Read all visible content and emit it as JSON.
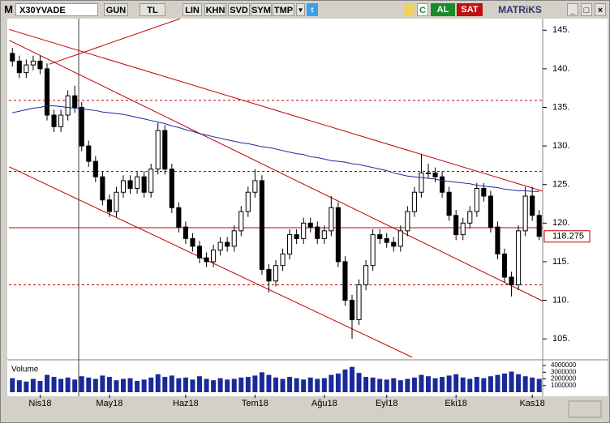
{
  "toolbar": {
    "logo": "M",
    "symbol": "X30YVADE",
    "buttons": [
      "GUN",
      "TL",
      "LIN",
      "KHN",
      "SVD",
      "SYM",
      "TMP"
    ],
    "buy": "AL",
    "sell": "SAT",
    "brand": "MATRiKS"
  },
  "chart_data": {
    "type": "candlestick",
    "categories": [
      null,
      null,
      null,
      null,
      "Nis18",
      null,
      null,
      null,
      null,
      null,
      null,
      null,
      null,
      null,
      "May18",
      null,
      null,
      null,
      null,
      null,
      null,
      null,
      null,
      null,
      null,
      "Haz18",
      null,
      null,
      null,
      null,
      null,
      null,
      null,
      null,
      null,
      "Tem18",
      null,
      null,
      null,
      null,
      null,
      null,
      null,
      null,
      null,
      "Ağu18",
      null,
      null,
      null,
      null,
      null,
      null,
      null,
      null,
      "Eyl18",
      null,
      null,
      null,
      null,
      null,
      null,
      null,
      null,
      null,
      "Eki18",
      null,
      null,
      null,
      null,
      null,
      null,
      null,
      null,
      null,
      null,
      "Kas18",
      null
    ],
    "open": [
      142,
      141,
      139.5,
      140.5,
      141,
      140,
      134,
      132.5,
      134,
      136.5,
      135,
      130,
      128,
      126,
      123,
      121.5,
      124,
      125.5,
      124.5,
      126,
      124,
      127,
      132,
      127,
      122,
      119.5,
      118,
      117,
      115.5,
      115,
      116.5,
      117.5,
      117,
      119,
      121.5,
      124,
      125.5,
      114,
      112.5,
      114.5,
      116,
      118.5,
      118,
      120,
      119.5,
      118,
      119,
      122,
      115,
      110,
      107.5,
      112,
      114.5,
      118.5,
      118,
      117.5,
      117,
      119,
      121.5,
      124,
      126.5,
      126.5,
      126,
      124,
      121,
      118.5,
      120,
      121.5,
      124.5,
      123.5,
      119.5,
      116,
      113,
      112,
      119,
      123.5,
      121
    ],
    "high": [
      142.7,
      141.7,
      141.2,
      141.7,
      141.7,
      140.7,
      134.7,
      134.7,
      137.2,
      137.8,
      135.7,
      130.7,
      128.7,
      126.7,
      123.7,
      124.7,
      126.2,
      126.2,
      126.7,
      126.7,
      127.7,
      133,
      132.7,
      127.7,
      122.7,
      120.2,
      118.7,
      117.7,
      116.2,
      117.2,
      118.2,
      118.2,
      119.7,
      122.2,
      124.7,
      127,
      126.2,
      114.7,
      115.2,
      116.7,
      119.2,
      119.2,
      120.7,
      120.7,
      120.2,
      119.7,
      123.5,
      122.7,
      115.7,
      110.7,
      112.7,
      115.2,
      119.2,
      119.2,
      118.7,
      118.2,
      119.7,
      122.2,
      124.7,
      129,
      127.7,
      127.2,
      126.7,
      124.7,
      121.7,
      120.7,
      122.2,
      125.2,
      125.2,
      124.2,
      120.2,
      116.7,
      113.7,
      119.7,
      124.7,
      124.7,
      121.7
    ],
    "low": [
      140.3,
      138.8,
      138.8,
      139.8,
      139.3,
      133.3,
      131.8,
      131.8,
      133.3,
      134.3,
      129.3,
      127.3,
      125.3,
      122.3,
      120.8,
      120.8,
      123.3,
      123.8,
      123.8,
      123.3,
      123.3,
      126.3,
      126.3,
      121.3,
      118.8,
      117.3,
      116.3,
      114.8,
      114.3,
      114.3,
      115.8,
      116.3,
      116.3,
      118.3,
      120.8,
      123.3,
      113.3,
      111,
      111.8,
      113.8,
      115.3,
      117.3,
      117.3,
      118.8,
      117.3,
      117.3,
      118.3,
      114.3,
      109.3,
      105,
      106.8,
      111.3,
      113.8,
      117.3,
      116.8,
      116.3,
      116.3,
      118.3,
      120.8,
      123.3,
      125.8,
      125.3,
      123.3,
      120.3,
      117.8,
      117.8,
      119.3,
      120.8,
      122.8,
      118.8,
      115.3,
      112.3,
      110.5,
      111.3,
      118.3,
      120.3,
      117.8
    ],
    "close": [
      141,
      139.5,
      140.5,
      141,
      140,
      134,
      132.5,
      134,
      136.5,
      135,
      130,
      128,
      126,
      123,
      121.5,
      124,
      125.5,
      124.5,
      126,
      124,
      127,
      132,
      127,
      122,
      119.5,
      118,
      117,
      115.5,
      115,
      116.5,
      117.5,
      117,
      119,
      121.5,
      124,
      125.5,
      114,
      112.5,
      114.5,
      116,
      118.5,
      118,
      120,
      119.5,
      118,
      119,
      122,
      115,
      110,
      107.5,
      112,
      114.5,
      118.5,
      118,
      117.5,
      117,
      119,
      121.5,
      124,
      126.5,
      126.5,
      126,
      124,
      121,
      118.5,
      120,
      121.5,
      124.5,
      123.5,
      119.5,
      116,
      113,
      112,
      119,
      123.5,
      121,
      118.275
    ],
    "up_color": "#ffffff",
    "down_color": "#000000",
    "xlim": [
      -0.5,
      76.5
    ],
    "ylim": [
      102.6,
      146.5
    ],
    "yticks": [
      {
        "value": 105,
        "label": "105."
      },
      {
        "value": 110,
        "label": "110."
      },
      {
        "value": 115,
        "label": "115."
      },
      {
        "value": 120,
        "label": "120."
      },
      {
        "value": 125,
        "label": "125."
      },
      {
        "value": 130,
        "label": "130."
      },
      {
        "value": 135,
        "label": "135."
      },
      {
        "value": 140,
        "label": "140."
      },
      {
        "value": 145,
        "label": "145."
      }
    ],
    "last_price": 118.275,
    "moving_average": {
      "color": "#1a2a9a",
      "values": [
        134.3,
        134.5,
        134.7,
        134.9,
        135.0,
        135.2,
        135.2,
        135.1,
        135.0,
        134.9,
        134.8,
        134.7,
        134.6,
        134.4,
        134.3,
        134.2,
        134.1,
        133.9,
        133.7,
        133.5,
        133.3,
        133.1,
        132.9,
        132.6,
        132.4,
        132.1,
        131.9,
        131.6,
        131.4,
        131.2,
        131.0,
        130.8,
        130.6,
        130.4,
        130.3,
        130.1,
        129.9,
        129.8,
        129.6,
        129.4,
        129.2,
        129.0,
        128.9,
        128.6,
        128.5,
        128.3,
        128.1,
        128.0,
        127.9,
        127.7,
        127.6,
        127.4,
        127.2,
        127.0,
        126.8,
        126.5,
        126.3,
        126.1,
        126.0,
        125.9,
        125.8,
        125.7,
        125.5,
        125.4,
        125.3,
        125.2,
        125.1,
        124.9,
        124.8,
        124.7,
        124.6,
        124.4,
        124.3,
        124.2,
        124.2,
        124.1,
        124.1
      ]
    },
    "horizontal_lines": [
      {
        "y": 135.9,
        "dashed": true,
        "color": "#c00000"
      },
      {
        "y": 126.7,
        "dashed": true,
        "color": "#c00000"
      },
      {
        "y": 119.4,
        "dashed": false,
        "color": "#c00000"
      },
      {
        "y": 112.0,
        "dashed": true,
        "color": "#c00000"
      }
    ],
    "trend_lines": [
      {
        "x": [
          -0.47,
          77.4
        ],
        "y": [
          145.1,
          123.9
        ],
        "color": "#c00000"
      },
      {
        "x": [
          -0.47,
          76.5
        ],
        "y": [
          143.7,
          109.9
        ],
        "color": "#c00000"
      },
      {
        "x": [
          -0.47,
          57.7
        ],
        "y": [
          127.3,
          102.6
        ],
        "color": "#c00000"
      },
      {
        "x": [
          5.35,
          24.2
        ],
        "y": [
          140.6,
          146.5
        ],
        "color": "#c00000"
      }
    ],
    "volume": {
      "label": "Volume",
      "color": "#1a2a9a",
      "ylim": [
        0,
        4500000
      ],
      "yticks": [
        1000000,
        2000000,
        3000000,
        4000000
      ],
      "values": [
        2100000,
        1800000,
        1600000,
        2000000,
        1700000,
        2600000,
        2300000,
        2000000,
        2200000,
        1900000,
        2400000,
        2200000,
        2000000,
        2500000,
        2300000,
        1800000,
        2000000,
        2100000,
        1700000,
        1900000,
        2200000,
        2700000,
        2300000,
        2500000,
        2100000,
        2200000,
        1900000,
        2400000,
        2000000,
        1800000,
        2100000,
        1900000,
        2000000,
        2200000,
        2300000,
        2500000,
        3000000,
        2600000,
        2200000,
        2000000,
        2300000,
        2100000,
        1900000,
        2200000,
        2000000,
        2100000,
        2600000,
        2800000,
        3400000,
        3800000,
        2900000,
        2300000,
        2200000,
        2000000,
        1900000,
        2100000,
        1800000,
        2000000,
        2200000,
        2600000,
        2400000,
        2100000,
        2300000,
        2500000,
        2700000,
        2200000,
        2000000,
        2300000,
        2100000,
        2400000,
        2600000,
        2800000,
        3100000,
        2700000,
        2400000,
        2200000,
        2000000
      ]
    }
  }
}
